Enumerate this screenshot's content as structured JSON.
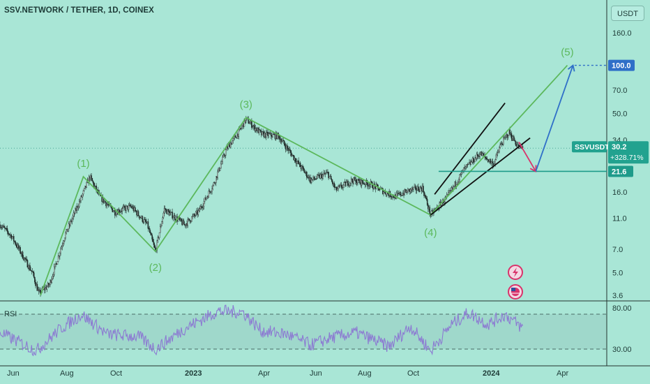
{
  "header": {
    "title": "SSV.NETWORK / TETHER, 1D, COINEX",
    "unit_button": "USDT"
  },
  "colors": {
    "background": "#a9e6d6",
    "candles": "#1f2a28",
    "wave_line": "#5cb85c",
    "target_arrow": "#2f6fc8",
    "down_arrow": "#d9336b",
    "support_line": "#1e9b8a",
    "channel_lines": "#111111",
    "rsi_line": "#8c7ad2"
  },
  "chart_data": {
    "type": "candlestick",
    "symbol": "SSVUSDT",
    "y_scale": "log",
    "y_ticks": [
      160.0,
      100.0,
      70.0,
      50.0,
      34.0,
      21.6,
      16.0,
      11.0,
      7.0,
      5.0,
      3.6
    ],
    "y_tick_labels": [
      "160.0",
      "100.0",
      "70.0",
      "50.0",
      "34.0",
      "21.6",
      "16.0",
      "11.0",
      "7.0",
      "5.0",
      "3.6"
    ],
    "x_tick_labels": [
      "Jun",
      "Aug",
      "Oct",
      "2023",
      "Apr",
      "Jun",
      "Aug",
      "Oct",
      "2024",
      "Apr"
    ],
    "x_range": [
      "2022-05-01",
      "2024-05-18"
    ],
    "price_path": [
      [
        "2022-05-01",
        10.0
      ],
      [
        "2022-05-15",
        8.5
      ],
      [
        "2022-06-10",
        5.0
      ],
      [
        "2022-06-18",
        3.7
      ],
      [
        "2022-07-01",
        4.2
      ],
      [
        "2022-07-20",
        8.5
      ],
      [
        "2022-08-10",
        15.0
      ],
      [
        "2022-08-20",
        20.0
      ],
      [
        "2022-09-01",
        15.0
      ],
      [
        "2022-09-20",
        12.0
      ],
      [
        "2022-10-10",
        13.0
      ],
      [
        "2022-10-30",
        10.0
      ],
      [
        "2022-11-09",
        6.8
      ],
      [
        "2022-11-20",
        12.5
      ],
      [
        "2022-12-15",
        10.0
      ],
      [
        "2023-01-01",
        12.0
      ],
      [
        "2023-01-20",
        18.0
      ],
      [
        "2023-02-05",
        30.0
      ],
      [
        "2023-02-20",
        38.0
      ],
      [
        "2023-03-01",
        46.0
      ],
      [
        "2023-03-20",
        37.0
      ],
      [
        "2023-04-10",
        36.0
      ],
      [
        "2023-04-30",
        26.0
      ],
      [
        "2023-05-20",
        19.0
      ],
      [
        "2023-06-10",
        21.0
      ],
      [
        "2023-06-20",
        16.5
      ],
      [
        "2023-07-10",
        19.0
      ],
      [
        "2023-08-01",
        18.0
      ],
      [
        "2023-08-20",
        16.0
      ],
      [
        "2023-09-01",
        15.0
      ],
      [
        "2023-09-20",
        16.5
      ],
      [
        "2023-10-05",
        17.0
      ],
      [
        "2023-10-15",
        11.5
      ],
      [
        "2023-11-05",
        15.0
      ],
      [
        "2023-11-25",
        22.0
      ],
      [
        "2023-12-15",
        28.0
      ],
      [
        "2024-01-01",
        24.0
      ],
      [
        "2024-01-10",
        32.0
      ],
      [
        "2024-01-20",
        38.0
      ],
      [
        "2024-02-01",
        30.5
      ],
      [
        "2024-02-06",
        30.2
      ]
    ],
    "last_price": {
      "label": "SSVUSDT",
      "value": "30.2",
      "change": "+328.71%"
    },
    "support_level": {
      "value": 21.6,
      "label": "21.6"
    },
    "target_level": {
      "value": 100.0,
      "label": "100.0"
    },
    "elliott_waves": [
      {
        "label": "(1)",
        "date": "2022-08-12",
        "price": 20.0
      },
      {
        "label": "(2)",
        "date": "2022-11-09",
        "price": 6.8
      },
      {
        "label": "(3)",
        "date": "2023-03-01",
        "price": 47.0
      },
      {
        "label": "(4)",
        "date": "2023-10-15",
        "price": 11.5
      },
      {
        "label": "(5)",
        "date": "2024-04-01",
        "price": 100.0
      }
    ],
    "wave_path_start": {
      "date": "2022-06-20",
      "price": 3.6
    },
    "channel": {
      "upper": [
        [
          "2023-10-20",
          15.5
        ],
        [
          "2024-01-15",
          58.0
        ]
      ],
      "lower": [
        [
          "2023-10-15",
          11.5
        ],
        [
          "2024-02-15",
          35.0
        ]
      ]
    },
    "projection": {
      "down_arrow": [
        [
          "2024-02-01",
          33.0
        ],
        [
          "2024-02-22",
          21.6
        ]
      ],
      "up_arrow": [
        [
          "2024-02-22",
          21.6
        ],
        [
          "2024-04-08",
          100.0
        ]
      ]
    },
    "rsi": {
      "label": "RSI",
      "y_ticks": [
        "80.00",
        "30.00"
      ],
      "upper_band": 70,
      "lower_band": 30,
      "path": [
        [
          "2022-05-01",
          50
        ],
        [
          "2022-06-15",
          28
        ],
        [
          "2022-07-15",
          55
        ],
        [
          "2022-08-10",
          72
        ],
        [
          "2022-09-10",
          48
        ],
        [
          "2022-10-20",
          45
        ],
        [
          "2022-11-09",
          30
        ],
        [
          "2022-12-15",
          55
        ],
        [
          "2023-01-25",
          76
        ],
        [
          "2023-02-25",
          75
        ],
        [
          "2023-03-20",
          52
        ],
        [
          "2023-04-20",
          48
        ],
        [
          "2023-05-20",
          35
        ],
        [
          "2023-06-15",
          44
        ],
        [
          "2023-07-15",
          50
        ],
        [
          "2023-08-25",
          33
        ],
        [
          "2023-09-20",
          58
        ],
        [
          "2023-10-15",
          28
        ],
        [
          "2023-11-10",
          60
        ],
        [
          "2023-12-01",
          74
        ],
        [
          "2023-12-25",
          60
        ],
        [
          "2024-01-15",
          72
        ],
        [
          "2024-02-06",
          55
        ]
      ]
    }
  }
}
